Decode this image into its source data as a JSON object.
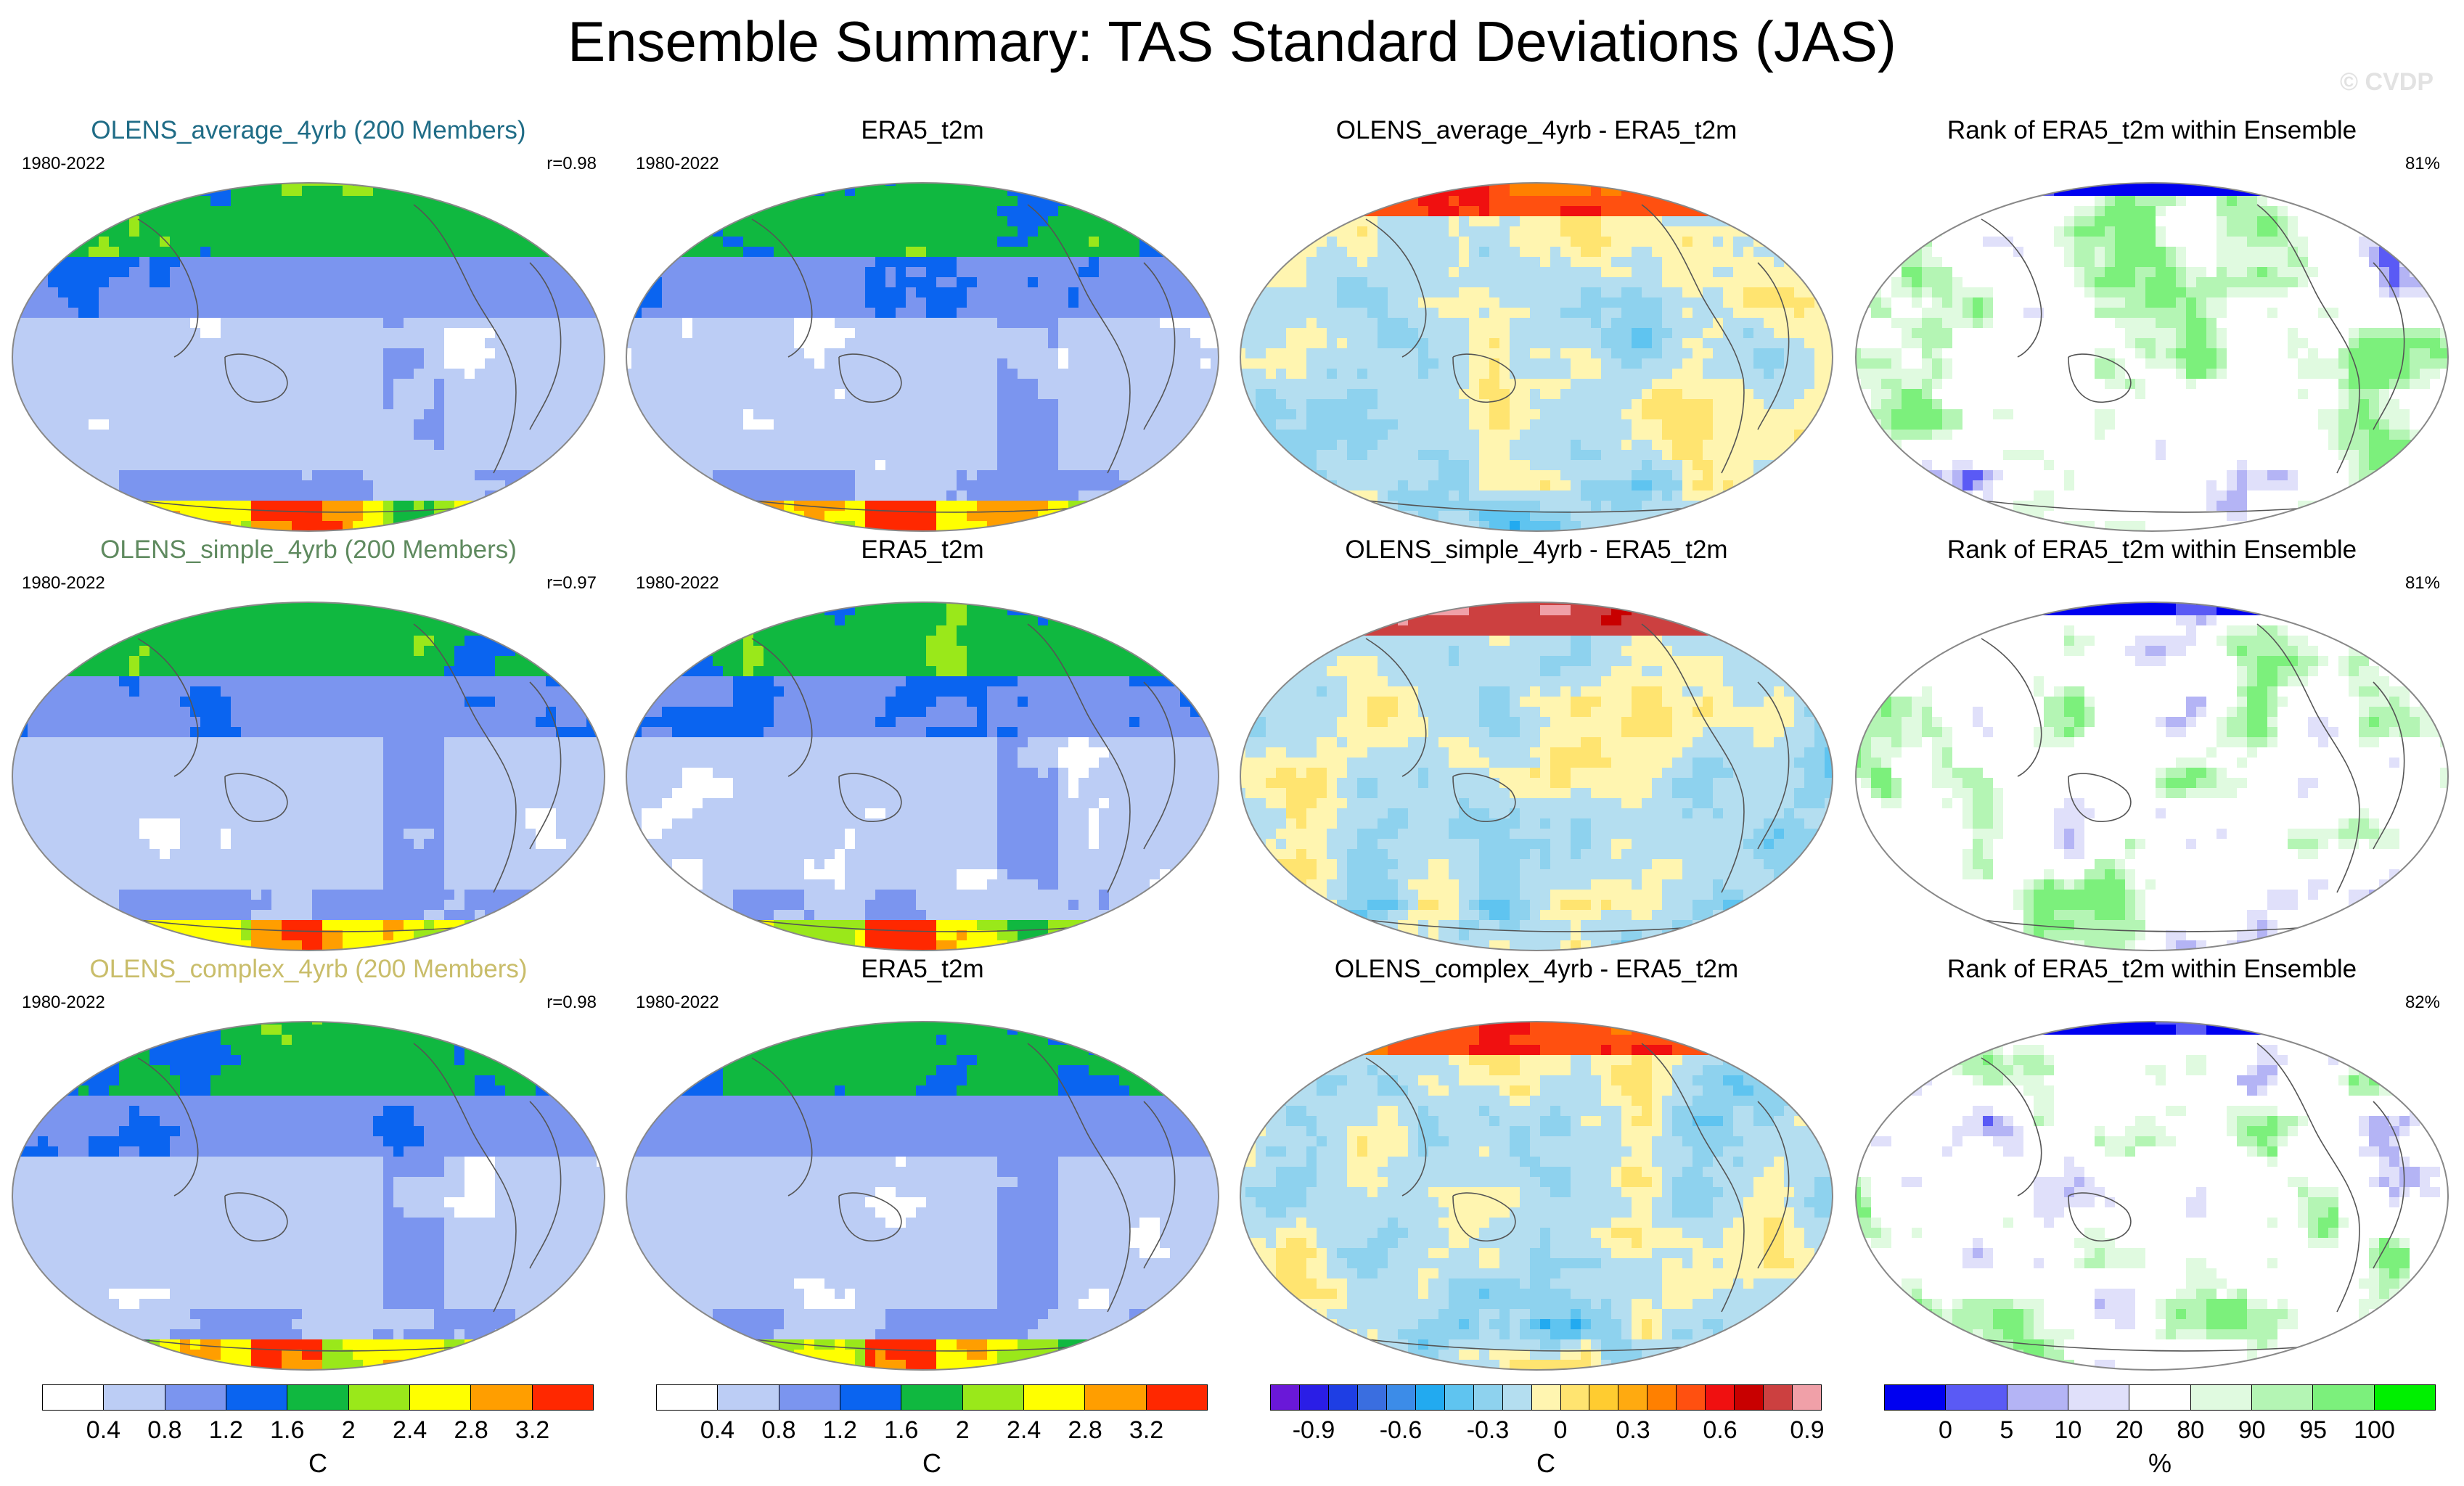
{
  "title": "Ensemble Summary: TAS Standard Deviations (JAS)",
  "watermark": "© CVDP",
  "rows": [
    {
      "panels": [
        {
          "title": "OLENS_average_4yrb (200 Members)",
          "title_color": "#1f6c86",
          "period": "1980-2022",
          "stat": "r=0.98",
          "type": "std"
        },
        {
          "title": "ERA5_t2m",
          "title_color": "#000000",
          "period": "1980-2022",
          "stat": "",
          "type": "std"
        },
        {
          "title": "OLENS_average_4yrb - ERA5_t2m",
          "title_color": "#000000",
          "period": "",
          "stat": "",
          "type": "diff"
        },
        {
          "title": "Rank of ERA5_t2m within Ensemble",
          "title_color": "#000000",
          "period": "",
          "stat": "81%",
          "type": "rank"
        }
      ]
    },
    {
      "panels": [
        {
          "title": "OLENS_simple_4yrb (200 Members)",
          "title_color": "#5f8a5f",
          "period": "1980-2022",
          "stat": "r=0.97",
          "type": "std"
        },
        {
          "title": "ERA5_t2m",
          "title_color": "#000000",
          "period": "1980-2022",
          "stat": "",
          "type": "std"
        },
        {
          "title": "OLENS_simple_4yrb - ERA5_t2m",
          "title_color": "#000000",
          "period": "",
          "stat": "",
          "type": "diff"
        },
        {
          "title": "Rank of ERA5_t2m within Ensemble",
          "title_color": "#000000",
          "period": "",
          "stat": "81%",
          "type": "rank"
        }
      ]
    },
    {
      "panels": [
        {
          "title": "OLENS_complex_4yrb (200 Members)",
          "title_color": "#c9bd6a",
          "period": "1980-2022",
          "stat": "r=0.98",
          "type": "std"
        },
        {
          "title": "ERA5_t2m",
          "title_color": "#000000",
          "period": "1980-2022",
          "stat": "",
          "type": "std"
        },
        {
          "title": "OLENS_complex_4yrb - ERA5_t2m",
          "title_color": "#000000",
          "period": "",
          "stat": "",
          "type": "diff"
        },
        {
          "title": "Rank of ERA5_t2m within Ensemble",
          "title_color": "#000000",
          "period": "",
          "stat": "82%",
          "type": "rank"
        }
      ]
    }
  ],
  "colorbars": [
    {
      "unit": "C",
      "colors": [
        "#ffffff",
        "#bccdf5",
        "#7b95ef",
        "#0a64f0",
        "#10b840",
        "#9ae81a",
        "#ffff00",
        "#ff9e00",
        "#ff2800"
      ],
      "ticks": [
        "0.4",
        "0.8",
        "1.2",
        "1.6",
        "2",
        "2.4",
        "2.8",
        "3.2"
      ]
    },
    {
      "unit": "C",
      "colors": [
        "#ffffff",
        "#bccdf5",
        "#7b95ef",
        "#0a64f0",
        "#10b840",
        "#9ae81a",
        "#ffff00",
        "#ff9e00",
        "#ff2800"
      ],
      "ticks": [
        "0.4",
        "0.8",
        "1.2",
        "1.6",
        "2",
        "2.4",
        "2.8",
        "3.2"
      ]
    },
    {
      "unit": "C",
      "colors": [
        "#6a18d8",
        "#2a1ee6",
        "#1e3ee4",
        "#3a6ee0",
        "#3c8ce8",
        "#22aaf0",
        "#5fc4f0",
        "#8ed2ee",
        "#b4def0",
        "#fff5b0",
        "#ffe470",
        "#ffcc30",
        "#ffaa10",
        "#ff8000",
        "#ff5010",
        "#f01010",
        "#c80000",
        "#cc4040",
        "#f0a0a8"
      ],
      "ticks": [
        "-0.9",
        "-0.6",
        "-0.3",
        "0",
        "0.3",
        "0.6",
        "0.9"
      ],
      "tick_index": [
        1.5,
        4.5,
        7.5,
        10,
        12.5,
        15.5,
        18.5
      ]
    },
    {
      "unit": "%",
      "colors": [
        "#0000f0",
        "#5a5af5",
        "#b4b4f5",
        "#e0e0fa",
        "#ffffff",
        "#e0fae0",
        "#b4f5b4",
        "#7cf07c",
        "#00f000"
      ],
      "ticks": [
        "0",
        "5",
        "10",
        "20",
        "80",
        "90",
        "95",
        "100"
      ]
    }
  ]
}
